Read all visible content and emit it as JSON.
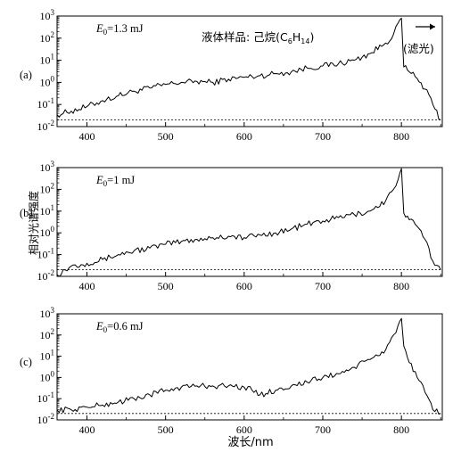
{
  "x_axis_label": "波长/nm",
  "y_axis_label": "相对光谱强度",
  "chart_data": [
    {
      "type": "line",
      "panel_label": "(a)",
      "annotation": "E0=1.3 mJ",
      "sample_label": "液体样品: 己烷(C6H14)",
      "filter_label": "(滤光)",
      "xlim": [
        362,
        852
      ],
      "ylim_log10": [
        -2,
        3
      ],
      "y_scale": "log",
      "xticks": [
        400,
        500,
        600,
        700,
        800
      ],
      "xtick_labels": [
        "400",
        "500",
        "600",
        "700",
        "800"
      ],
      "yticks_log10": [
        -2,
        -1,
        0,
        1,
        2,
        3
      ],
      "ytick_labels": [
        "10-2",
        "10-1",
        "100",
        "101",
        "102",
        "103"
      ],
      "baseline": 0.02,
      "series": [
        {
          "x": [
            362,
            380,
            400,
            420,
            440,
            460,
            480,
            500,
            520,
            540,
            560,
            580,
            600,
            620,
            640,
            660,
            680,
            700,
            720,
            740,
            760,
            780,
            790,
            796,
            800,
            803,
            810,
            820,
            830,
            840,
            850
          ],
          "y": [
            0.035,
            0.05,
            0.08,
            0.15,
            0.25,
            0.4,
            0.55,
            0.8,
            1.0,
            1.1,
            1.0,
            1.4,
            1.7,
            2.0,
            2.5,
            3.0,
            4.5,
            5.5,
            7.0,
            10,
            20,
            60,
            150,
            500,
            800,
            5,
            3,
            1.5,
            0.5,
            0.1,
            0.02
          ]
        }
      ]
    },
    {
      "type": "line",
      "panel_label": "(b)",
      "annotation": "E0=1 mJ",
      "xlim": [
        362,
        852
      ],
      "ylim_log10": [
        -2,
        3
      ],
      "y_scale": "log",
      "xticks": [
        400,
        500,
        600,
        700,
        800
      ],
      "xtick_labels": [
        "400",
        "500",
        "600",
        "700",
        "800"
      ],
      "yticks_log10": [
        -2,
        -1,
        0,
        1,
        2,
        3
      ],
      "ytick_labels": [
        "10-2",
        "10-1",
        "100",
        "101",
        "102",
        "103"
      ],
      "baseline": 0.02,
      "series": [
        {
          "x": [
            362,
            380,
            400,
            420,
            440,
            460,
            480,
            500,
            520,
            540,
            560,
            580,
            600,
            620,
            640,
            660,
            680,
            700,
            720,
            740,
            760,
            780,
            790,
            796,
            800,
            803,
            810,
            820,
            830,
            840,
            850
          ],
          "y": [
            0.012,
            0.03,
            0.04,
            0.06,
            0.1,
            0.15,
            0.2,
            0.3,
            0.4,
            0.5,
            0.6,
            0.7,
            0.6,
            0.8,
            1.0,
            1.5,
            2.5,
            3.5,
            5,
            7,
            10,
            30,
            100,
            300,
            900,
            8,
            4,
            2,
            0.5,
            0.05,
            0.02
          ]
        }
      ]
    },
    {
      "type": "line",
      "panel_label": "(c)",
      "annotation": "E0=0.6 mJ",
      "xlim": [
        362,
        852
      ],
      "ylim_log10": [
        -2,
        3
      ],
      "y_scale": "log",
      "xticks": [
        400,
        500,
        600,
        700,
        800
      ],
      "xtick_labels": [
        "400",
        "500",
        "600",
        "700",
        "800"
      ],
      "yticks_log10": [
        -2,
        -1,
        0,
        1,
        2,
        3
      ],
      "ytick_labels": [
        "10-2",
        "10-1",
        "100",
        "101",
        "102",
        "103"
      ],
      "baseline": 0.02,
      "series": [
        {
          "x": [
            362,
            380,
            400,
            420,
            440,
            460,
            480,
            500,
            520,
            540,
            560,
            580,
            600,
            610,
            620,
            640,
            660,
            680,
            700,
            720,
            740,
            760,
            780,
            790,
            796,
            800,
            803,
            810,
            820,
            830,
            840,
            850
          ],
          "y": [
            0.03,
            0.03,
            0.04,
            0.05,
            0.07,
            0.1,
            0.15,
            0.25,
            0.35,
            0.4,
            0.4,
            0.4,
            0.35,
            0.25,
            0.15,
            0.25,
            0.4,
            0.6,
            1.0,
            1.5,
            3,
            7,
            20,
            100,
            300,
            600,
            30,
            5,
            1,
            0.2,
            0.03,
            0.02
          ]
        }
      ]
    }
  ]
}
